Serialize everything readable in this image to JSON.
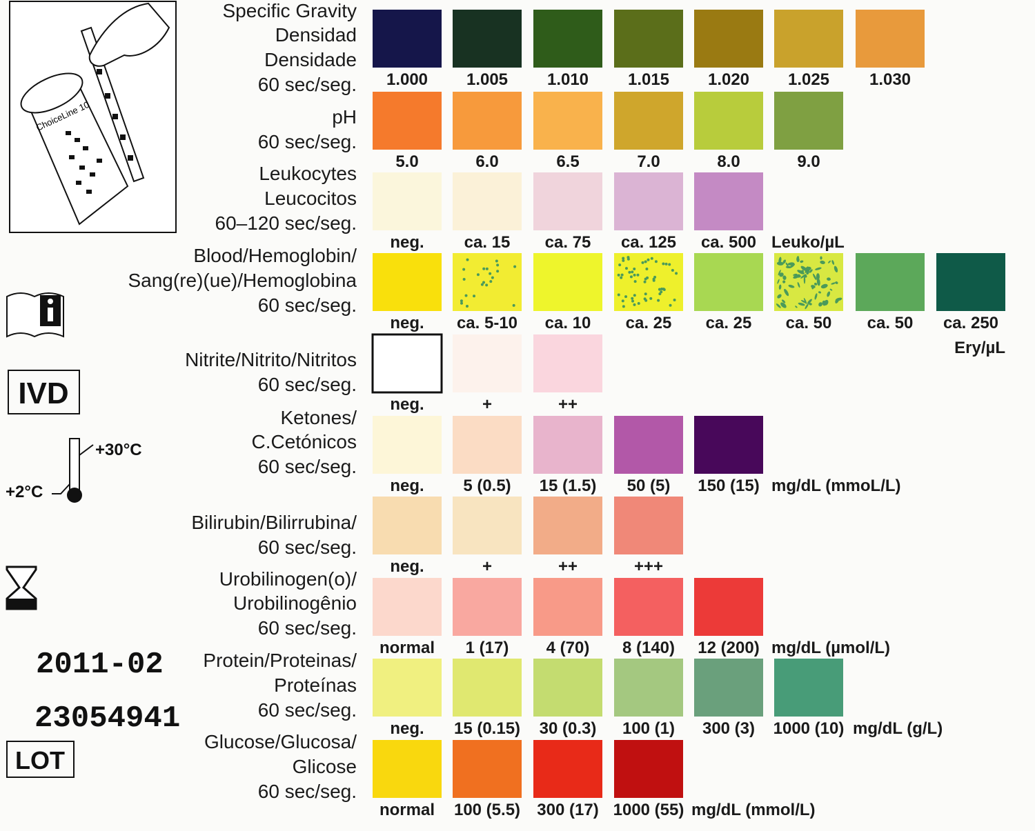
{
  "illustration": {
    "bottle_label": "ChoiceLine 10"
  },
  "side": {
    "ivd": "IVD",
    "temp_high": "+30°C",
    "temp_low": "+2°C",
    "date": "2011-02",
    "lot_number": "23054941",
    "lot": "LOT"
  },
  "rows": [
    {
      "label": [
        "Specific Gravity",
        "Densidad",
        "Densidade",
        "60 sec/seg."
      ],
      "swatches": [
        {
          "color": "#15164a",
          "label": "1.000"
        },
        {
          "color": "#183222",
          "label": "1.005"
        },
        {
          "color": "#2f5c1a",
          "label": "1.010"
        },
        {
          "color": "#5b6e1a",
          "label": "1.015"
        },
        {
          "color": "#9a7a12",
          "label": "1.020"
        },
        {
          "color": "#c9a22c",
          "label": "1.025"
        },
        {
          "color": "#e89a3c",
          "label": "1.030"
        }
      ]
    },
    {
      "label": [
        "pH",
        "60 sec/seg."
      ],
      "swatches": [
        {
          "color": "#f57a2c",
          "label": "5.0"
        },
        {
          "color": "#f79a3c",
          "label": "6.0"
        },
        {
          "color": "#f9b24c",
          "label": "6.5"
        },
        {
          "color": "#cfa62c",
          "label": "7.0"
        },
        {
          "color": "#b8cc3c",
          "label": "8.0"
        },
        {
          "color": "#7fa042",
          "label": "9.0"
        }
      ]
    },
    {
      "label": [
        "Leukocytes",
        "Leucocitos",
        "60–120 sec/seg."
      ],
      "swatches": [
        {
          "color": "#fbf6dc",
          "label": "neg."
        },
        {
          "color": "#fbf1d8",
          "label": "ca. 15"
        },
        {
          "color": "#f0d4dc",
          "label": "ca. 75"
        },
        {
          "color": "#dbb4d4",
          "label": "ca. 125"
        },
        {
          "color": "#c48ac4",
          "label": "ca. 500"
        }
      ],
      "unit": "Leuko/µL"
    },
    {
      "label": [
        "Blood/Hemoglobin/",
        "Sang(re)(ue)/Hemoglobina",
        "60 sec/seg."
      ],
      "swatches": [
        {
          "color": "#f9e00c",
          "label": "neg."
        },
        {
          "color": "#f2ec32",
          "label": "ca. 5-10",
          "pattern": "dots"
        },
        {
          "color": "#eef52c",
          "label": "ca. 10"
        },
        {
          "color": "#eef02c",
          "label": "ca. 25",
          "pattern": "dense-dots"
        },
        {
          "color": "#a8d852",
          "label": "ca. 25"
        },
        {
          "color": "#d8e842",
          "label": "ca. 50",
          "pattern": "splotch"
        },
        {
          "color": "#5ca85a",
          "label": "ca. 50"
        },
        {
          "color": "#0f5a48",
          "label": "ca. 250"
        }
      ],
      "unit": "Ery/µL"
    },
    {
      "label": [
        "Nitrite/Nitrito/Nitritos",
        "60 sec/seg."
      ],
      "swatches": [
        {
          "color": "#ffffff",
          "label": "neg.",
          "border": "#111111"
        },
        {
          "color": "#fdf2ec",
          "label": "+"
        },
        {
          "color": "#fad6de",
          "label": "++"
        }
      ]
    },
    {
      "label": [
        "Ketones/",
        "C.Cetónicos",
        "60 sec/seg."
      ],
      "swatches": [
        {
          "color": "#fdf6d8",
          "label": "neg."
        },
        {
          "color": "#fbdcc4",
          "label": "5 (0.5)"
        },
        {
          "color": "#e8b4cc",
          "label": "15 (1.5)"
        },
        {
          "color": "#b258a8",
          "label": "50 (5)"
        },
        {
          "color": "#48085a",
          "label": "150 (15)"
        }
      ],
      "unit": "mg/dL (mmoL/L)"
    },
    {
      "label": [
        "Bilirubin/Bilirrubina/",
        "60 sec/seg."
      ],
      "swatches": [
        {
          "color": "#f8dcb0",
          "label": "neg."
        },
        {
          "color": "#f8e4c0",
          "label": "+"
        },
        {
          "color": "#f2ac88",
          "label": "++"
        },
        {
          "color": "#f08878",
          "label": "+++"
        }
      ]
    },
    {
      "label": [
        "Urobilinogen(o)/",
        "Urobilinogênio",
        "60 sec/seg."
      ],
      "swatches": [
        {
          "color": "#fcd8cc",
          "label": "normal"
        },
        {
          "color": "#f9a8a0",
          "label": "1 (17)"
        },
        {
          "color": "#f89a88",
          "label": "4 (70)"
        },
        {
          "color": "#f46060",
          "label": "8 (140)"
        },
        {
          "color": "#ec3a38",
          "label": "12 (200)"
        }
      ],
      "unit": "mg/dL (µmol/L)"
    },
    {
      "label": [
        "Protein/Proteinas/",
        "Proteínas",
        "60 sec/seg."
      ],
      "swatches": [
        {
          "color": "#f0f080",
          "label": "neg."
        },
        {
          "color": "#e0e870",
          "label": "15 (0.15)"
        },
        {
          "color": "#c4dc70",
          "label": "30 (0.3)"
        },
        {
          "color": "#a4c880",
          "label": "100 (1)"
        },
        {
          "color": "#6aa07c",
          "label": "300 (3)"
        },
        {
          "color": "#489c78",
          "label": "1000 (10)"
        }
      ],
      "unit": "mg/dL (g/L)"
    },
    {
      "label": [
        "Glucose/Glucosa/",
        "Glicose",
        "60 sec/seg."
      ],
      "swatches": [
        {
          "color": "#f9d80e",
          "label": "normal"
        },
        {
          "color": "#f07020",
          "label": "100 (5.5)"
        },
        {
          "color": "#e82a18",
          "label": "300 (17)"
        },
        {
          "color": "#c01010",
          "label": "1000 (55)"
        }
      ],
      "unit": "mg/dL (mmol/L)"
    }
  ]
}
